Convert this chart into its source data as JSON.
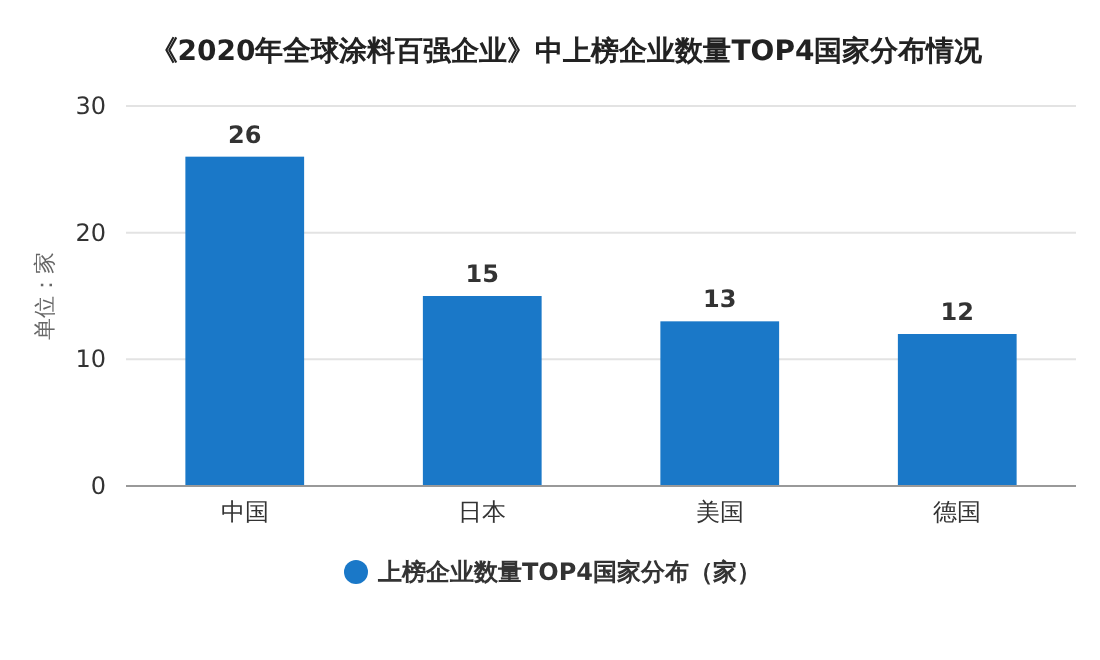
{
  "chart_data": {
    "type": "bar",
    "title": "《2020年全球涂料百强企业》中上榜企业数量TOP4国家分布情况",
    "ylabel": "单位：家",
    "categories": [
      "中国",
      "日本",
      "美国",
      "德国"
    ],
    "series": [
      {
        "name": "上榜企业数量TOP4国家分布（家）",
        "color": "#1a78c8",
        "values": [
          26,
          15,
          13,
          12
        ]
      }
    ],
    "ylim": [
      0,
      30
    ],
    "yticks": [
      0,
      10,
      20,
      30
    ],
    "grid": "y",
    "legend": "bottom",
    "data_labels": true
  }
}
